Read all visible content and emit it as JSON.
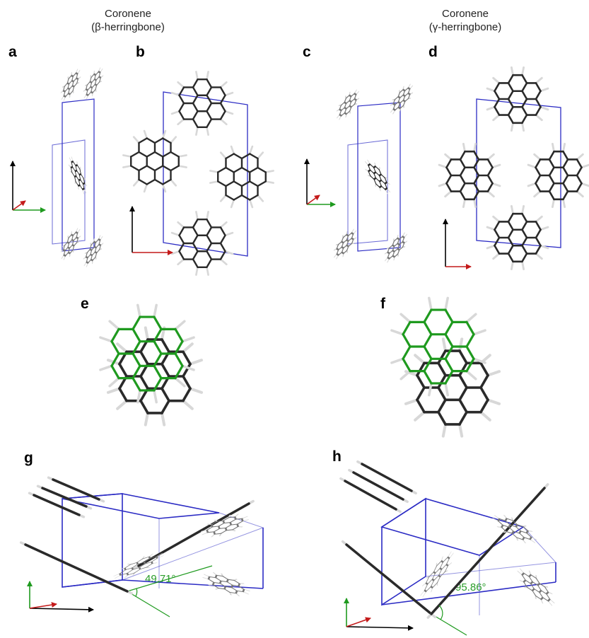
{
  "titles": {
    "beta": {
      "line1": "Coronene",
      "line2": "(β-herringbone)"
    },
    "gamma": {
      "line1": "Coronene",
      "line2": "(γ-herringbone)"
    }
  },
  "panel_labels": {
    "a": "a",
    "b": "b",
    "c": "c",
    "d": "d",
    "e": "e",
    "f": "f",
    "g": "g",
    "h": "h"
  },
  "angles": {
    "g": "49.71°",
    "h": "95.86°"
  },
  "colors": {
    "cell": "#2b2bc4",
    "molecule_dark": "#2a2a2a",
    "molecule_gray": "#777777",
    "hydrogen": "#d8d8d8",
    "green": "#1f9a1f",
    "axis_red": "#c41a1a",
    "axis_black": "#000000"
  }
}
